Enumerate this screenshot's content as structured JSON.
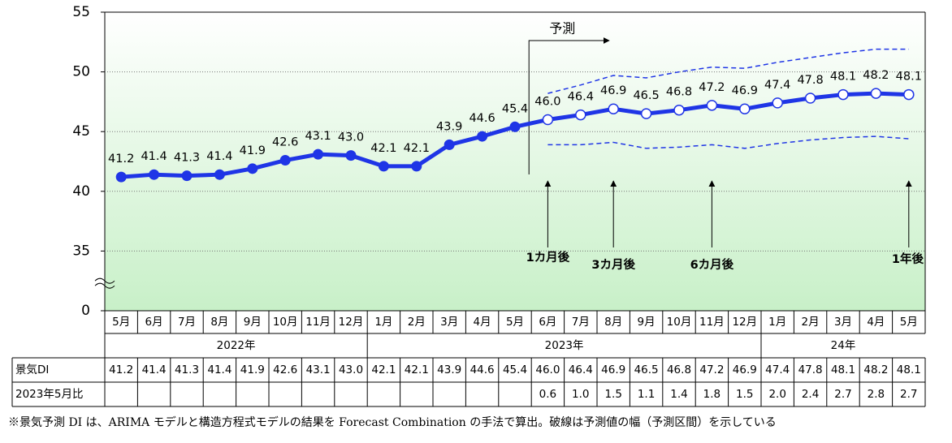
{
  "chart_data": {
    "type": "line",
    "categories": [
      "5月",
      "6月",
      "7月",
      "8月",
      "9月",
      "10月",
      "11月",
      "12月",
      "1月",
      "2月",
      "3月",
      "4月",
      "5月",
      "6月",
      "7月",
      "8月",
      "9月",
      "10月",
      "11月",
      "12月",
      "1月",
      "2月",
      "3月",
      "4月",
      "5月"
    ],
    "year_groups": [
      {
        "label": "2022年",
        "count": 8
      },
      {
        "label": "2023年",
        "count": 12
      },
      {
        "label": "24年",
        "count": 5
      }
    ],
    "series": [
      {
        "name": "景気DI",
        "color": "#1f35e6",
        "values": [
          41.2,
          41.4,
          41.3,
          41.4,
          41.9,
          42.6,
          43.1,
          43.0,
          42.1,
          42.1,
          43.9,
          44.6,
          45.4,
          46.0,
          46.4,
          46.9,
          46.5,
          46.8,
          47.2,
          46.9,
          47.4,
          47.8,
          48.1,
          48.2,
          48.1
        ],
        "value_labels": [
          "41.2",
          "41.4",
          "41.3",
          "41.4",
          "41.9",
          "42.6",
          "43.1",
          "43.0",
          "42.1",
          "42.1",
          "43.9",
          "44.6",
          "45.4",
          "46.0",
          "46.4",
          "46.9",
          "46.5",
          "46.8",
          "47.2",
          "46.9",
          "47.4",
          "47.8",
          "48.1",
          "48.2",
          "48.1"
        ]
      },
      {
        "color": "#1f35e6",
        "dashed": true,
        "values": [
          null,
          null,
          null,
          null,
          null,
          null,
          null,
          null,
          null,
          null,
          null,
          null,
          null,
          48.2,
          48.9,
          49.7,
          49.5,
          50.0,
          50.4,
          50.3,
          50.8,
          51.2,
          51.6,
          51.9,
          51.9
        ]
      },
      {
        "color": "#1f35e6",
        "dashed": true,
        "values": [
          null,
          null,
          null,
          null,
          null,
          null,
          null,
          null,
          null,
          null,
          null,
          null,
          null,
          43.9,
          43.9,
          44.1,
          43.6,
          43.7,
          43.9,
          43.6,
          44.0,
          44.3,
          44.5,
          44.6,
          44.4
        ]
      }
    ],
    "comparison": {
      "name": "2023年5月比",
      "values": [
        null,
        null,
        null,
        null,
        null,
        null,
        null,
        null,
        null,
        null,
        null,
        null,
        null,
        0.6,
        1.0,
        1.5,
        1.1,
        1.4,
        1.8,
        1.5,
        2.0,
        2.4,
        2.7,
        2.8,
        2.7
      ],
      "value_labels": [
        null,
        null,
        null,
        null,
        null,
        null,
        null,
        null,
        null,
        null,
        null,
        null,
        null,
        "0.6",
        "1.0",
        "1.5",
        "1.1",
        "1.4",
        "1.8",
        "1.5",
        "2.0",
        "2.4",
        "2.7",
        "2.8",
        "2.7"
      ]
    },
    "forecast_start": 13,
    "forecast_label": "予測",
    "annotations": [
      {
        "text": "1カ月後",
        "index": 13
      },
      {
        "text": "3カ月後",
        "index": 15
      },
      {
        "text": "6カ月後",
        "index": 18
      },
      {
        "text": "1年後",
        "index": 24
      }
    ],
    "ylim": [
      0,
      55
    ],
    "y_break": [
      0,
      30
    ],
    "yticks": [
      0,
      35,
      40,
      45,
      50,
      55
    ],
    "grid": true,
    "footnote": "※景気予測 DI は、ARIMA モデルと構造方程式モデルの結果を Forecast Combination の手法で算出。破線は予測値の幅（予測区間）を示している"
  }
}
